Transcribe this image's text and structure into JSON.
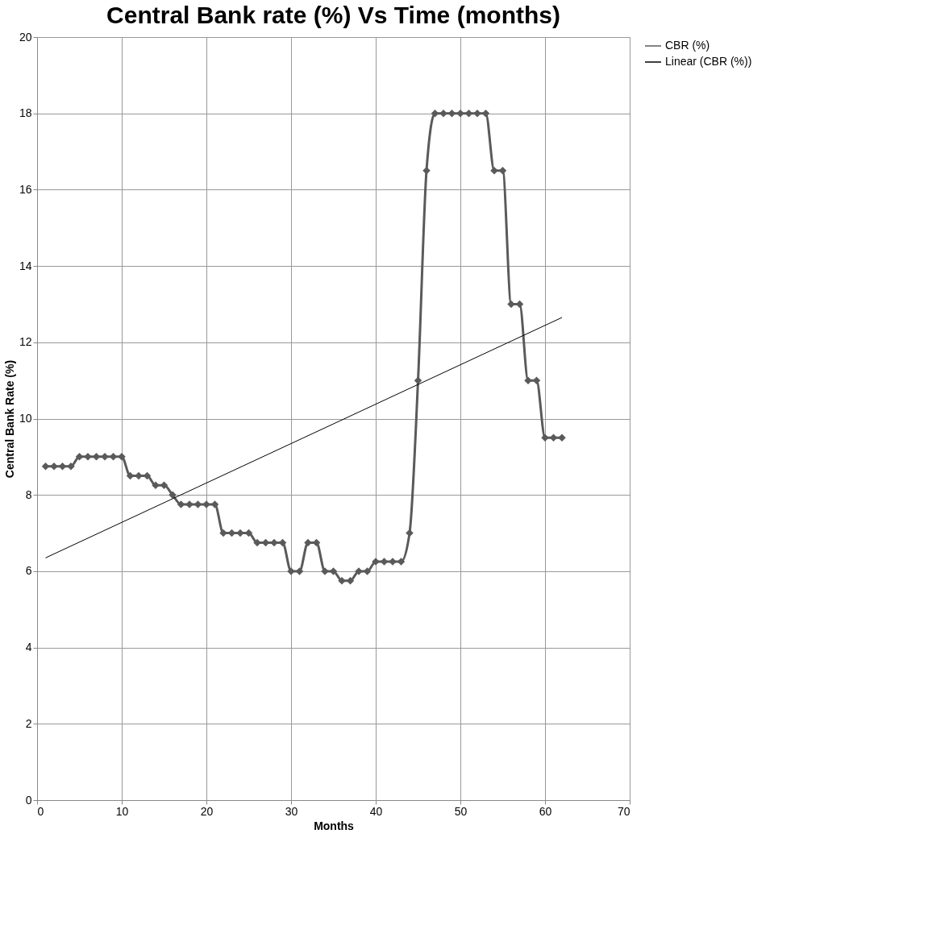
{
  "chart_data": {
    "type": "line",
    "title": "Central Bank rate (%) Vs Time (months)",
    "xlabel": "Months",
    "ylabel": "Central Bank Rate (%)",
    "x": [
      1,
      2,
      3,
      4,
      5,
      6,
      7,
      8,
      9,
      10,
      11,
      12,
      13,
      14,
      15,
      16,
      17,
      18,
      19,
      20,
      21,
      22,
      23,
      24,
      25,
      26,
      27,
      28,
      29,
      30,
      31,
      32,
      33,
      34,
      35,
      36,
      37,
      38,
      39,
      40,
      41,
      42,
      43,
      44,
      45,
      46,
      47,
      48,
      49,
      50,
      51,
      52,
      53,
      54,
      55,
      56,
      57,
      58,
      59,
      60,
      61,
      62
    ],
    "series": [
      {
        "name": "CBR (%)",
        "color": "#5a5a5a",
        "marker": "diamond",
        "values": [
          8.75,
          8.75,
          8.75,
          8.75,
          9,
          9,
          9,
          9,
          9,
          9,
          8.5,
          8.5,
          8.5,
          8.25,
          8.25,
          8,
          7.75,
          7.75,
          7.75,
          7.75,
          7.75,
          7,
          7,
          7,
          7,
          6.75,
          6.75,
          6.75,
          6.75,
          6,
          6,
          6.75,
          6.75,
          6,
          6,
          5.75,
          5.75,
          6,
          6,
          6.25,
          6.25,
          6.25,
          6.25,
          7,
          11,
          16.5,
          18,
          18,
          18,
          18,
          18,
          18,
          18,
          16.5,
          16.5,
          13,
          13,
          11,
          11,
          9.5,
          9.5,
          9.5
        ]
      },
      {
        "name": "Linear (CBR (%))",
        "color": "#000000",
        "marker": "none",
        "x": [
          1,
          62
        ],
        "values": [
          6.35,
          12.65
        ]
      }
    ],
    "xlim": [
      0,
      70
    ],
    "xticks": [
      0,
      10,
      20,
      30,
      40,
      50,
      60,
      70
    ],
    "ylim": [
      0,
      20
    ],
    "yticks": [
      0,
      2,
      4,
      6,
      8,
      10,
      12,
      14,
      16,
      18,
      20
    ],
    "grid": true,
    "legend": "right"
  }
}
